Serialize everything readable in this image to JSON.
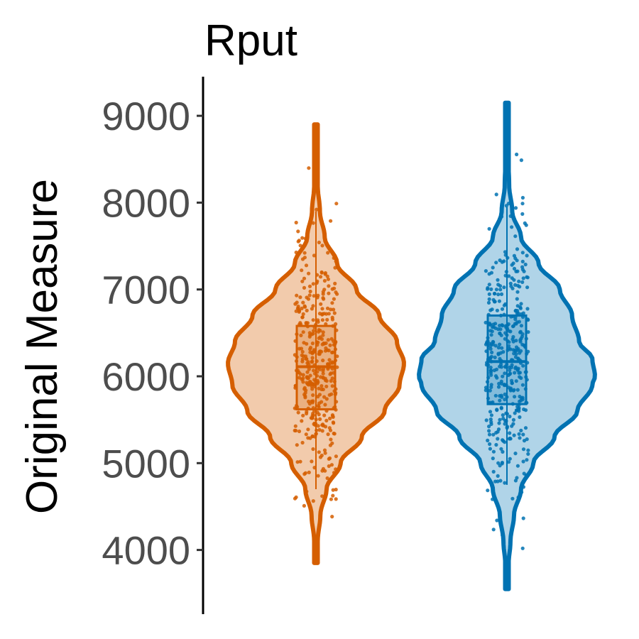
{
  "chart_data": {
    "type": "violin",
    "title": "Rput",
    "xlabel": "",
    "ylabel": "Original Measure",
    "ylim": [
      3500,
      9400
    ],
    "yticks": [
      4000,
      5000,
      6000,
      7000,
      8000,
      9000
    ],
    "ytick_labels": [
      "4000",
      "5000",
      "6000",
      "7000",
      "8000",
      "9000"
    ],
    "grid": false,
    "legend": "none",
    "series": [
      {
        "color": "#d55e00",
        "fill": "#f2cbac",
        "min": 3850,
        "max": 8900,
        "q1": 5620,
        "median": 6110,
        "q3": 6580,
        "whisker_low": 4700,
        "whisker_high": 7900,
        "density": [
          [
            3850,
            0.005
          ],
          [
            4100,
            0.02
          ],
          [
            4400,
            0.05
          ],
          [
            4700,
            0.12
          ],
          [
            5000,
            0.28
          ],
          [
            5300,
            0.52
          ],
          [
            5600,
            0.78
          ],
          [
            5900,
            0.95
          ],
          [
            6150,
            1.0
          ],
          [
            6400,
            0.92
          ],
          [
            6700,
            0.72
          ],
          [
            7000,
            0.46
          ],
          [
            7300,
            0.24
          ],
          [
            7600,
            0.1
          ],
          [
            7900,
            0.045
          ],
          [
            8200,
            0.02
          ],
          [
            8500,
            0.01
          ],
          [
            8900,
            0.003
          ]
        ]
      },
      {
        "color": "#0072b2",
        "fill": "#b0d4e8",
        "min": 3550,
        "max": 9150,
        "q1": 5680,
        "median": 6170,
        "q3": 6700,
        "whisker_low": 4750,
        "whisker_high": 7950,
        "density": [
          [
            3550,
            0.003
          ],
          [
            3800,
            0.015
          ],
          [
            4100,
            0.04
          ],
          [
            4400,
            0.08
          ],
          [
            4700,
            0.16
          ],
          [
            5000,
            0.3
          ],
          [
            5300,
            0.54
          ],
          [
            5600,
            0.8
          ],
          [
            5900,
            0.97
          ],
          [
            6000,
            1.0
          ],
          [
            6200,
            0.97
          ],
          [
            6400,
            0.82
          ],
          [
            6700,
            0.74
          ],
          [
            7000,
            0.6
          ],
          [
            7300,
            0.36
          ],
          [
            7600,
            0.16
          ],
          [
            7900,
            0.06
          ],
          [
            8200,
            0.025
          ],
          [
            8600,
            0.01
          ],
          [
            9150,
            0.003
          ]
        ]
      }
    ]
  }
}
